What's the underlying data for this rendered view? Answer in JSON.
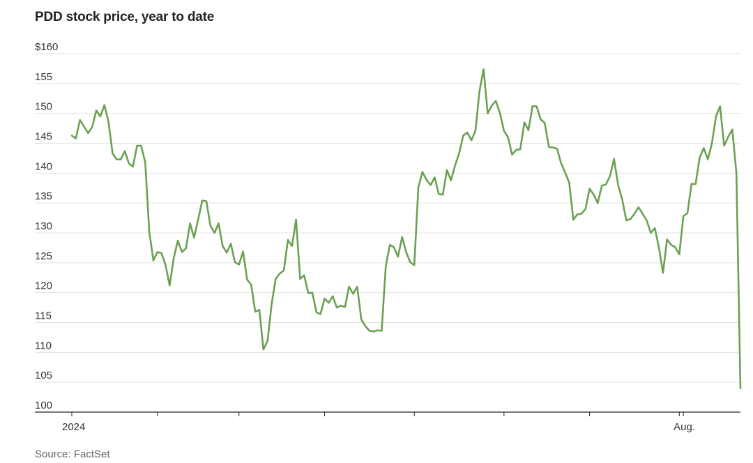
{
  "title": "PDD stock price, year to date",
  "source": "Source: FactSet",
  "colors": {
    "line": "#6aa152",
    "grid": "#e3e3e3",
    "axis": "#222222",
    "text": "#333333"
  },
  "chart_data": {
    "type": "line",
    "title": "PDD stock price, year to date",
    "xlabel": "",
    "ylabel": "",
    "ylim": [
      100,
      160
    ],
    "yticks": [
      100,
      105,
      110,
      115,
      120,
      125,
      130,
      135,
      140,
      145,
      150,
      155,
      160
    ],
    "ytick_labels": [
      "100",
      "105",
      "110",
      "115",
      "120",
      "125",
      "130",
      "135",
      "140",
      "145",
      "150",
      "155",
      "$160"
    ],
    "xtick_labels": [
      {
        "label": "2024",
        "index": 0
      },
      {
        "label": "",
        "index": 21
      },
      {
        "label": "",
        "index": 41
      },
      {
        "label": "",
        "index": 62
      },
      {
        "label": "",
        "index": 84
      },
      {
        "label": "",
        "index": 106
      },
      {
        "label": "",
        "index": 127
      },
      {
        "label": "",
        "index": 149
      },
      {
        "label": "Aug.",
        "index": 150
      }
    ],
    "grid": true,
    "series": [
      {
        "values": [
          146.3,
          145.8,
          148.9,
          147.8,
          146.7,
          147.7,
          150.5,
          149.5,
          151.4,
          148.6,
          143.3,
          142.3,
          142.3,
          143.7,
          141.6,
          141.1,
          144.6,
          144.6,
          141.8,
          130.2,
          125.4,
          126.8,
          126.6,
          124.6,
          121.2,
          125.8,
          128.7,
          126.8,
          127.4,
          131.6,
          129.2,
          132.3,
          135.4,
          135.3,
          131.2,
          130.0,
          131.6,
          127.8,
          126.7,
          128.2,
          125.1,
          124.7,
          126.9,
          122.2,
          121.3,
          116.8,
          117.1,
          110.5,
          111.9,
          118.0,
          122.3,
          123.2,
          123.7,
          128.8,
          127.8,
          132.2,
          122.3,
          122.9,
          119.9,
          120.0,
          116.7,
          116.4,
          119.0,
          118.3,
          119.4,
          117.5,
          117.8,
          117.6,
          121.0,
          119.8,
          121.0,
          115.5,
          114.4,
          113.6,
          113.5,
          113.7,
          113.6,
          124.4,
          128.0,
          127.6,
          126.0,
          129.3,
          126.8,
          125.1,
          124.6,
          137.6,
          140.2,
          138.9,
          138.0,
          139.3,
          136.5,
          136.4,
          140.5,
          138.8,
          141.3,
          143.3,
          146.3,
          146.8,
          145.5,
          147.1,
          153.8,
          157.4,
          150.0,
          151.3,
          152.1,
          150.1,
          147.1,
          146.0,
          143.1,
          143.9,
          144.0,
          148.5,
          147.2,
          151.2,
          151.2,
          149.0,
          148.4,
          144.4,
          144.3,
          144.1,
          141.7,
          140.1,
          138.4,
          132.2,
          133.1,
          133.2,
          134.0,
          137.4,
          136.4,
          135.0,
          137.9,
          138.1,
          139.5,
          142.4,
          138.0,
          135.6,
          132.1,
          132.3,
          133.2,
          134.3,
          133.2,
          132.1,
          130.0,
          130.8,
          127.6,
          123.3,
          128.9,
          128.0,
          127.6,
          126.4,
          132.8,
          133.3,
          138.2,
          138.2,
          142.6,
          144.2,
          142.3,
          145.0,
          149.5,
          151.2,
          144.6,
          146.1,
          147.3,
          140.0,
          104.0
        ]
      }
    ]
  }
}
